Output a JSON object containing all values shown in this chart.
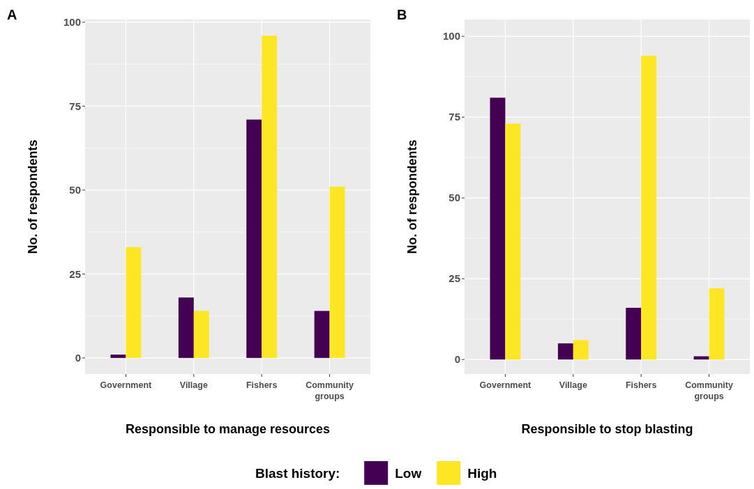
{
  "chart_data": [
    {
      "type": "bar",
      "title": "A",
      "xlabel": "Responsible to manage resources",
      "ylabel": "No. of respondents",
      "legend_title": "Blast history:",
      "legend": "bottom",
      "grid": true,
      "categories": [
        "Government",
        "Village",
        "Fishers",
        "Community groups"
      ],
      "series": [
        {
          "name": "Low",
          "color": "#440154",
          "values": [
            1,
            18,
            71,
            14
          ]
        },
        {
          "name": "High",
          "color": "#fde725",
          "values": [
            33,
            14,
            96,
            51
          ]
        }
      ],
      "ylim": [
        -4.8,
        100.8
      ],
      "yticks": [
        0,
        25,
        50,
        75,
        100
      ]
    },
    {
      "type": "bar",
      "title": "B",
      "xlabel": "Responsible to stop blasting",
      "ylabel": "No. of respondents",
      "grid": true,
      "categories": [
        "Government",
        "Village",
        "Fishers",
        "Community groups"
      ],
      "series": [
        {
          "color": "#440154",
          "values": [
            81,
            5,
            16,
            1
          ]
        },
        {
          "color": "#fde725",
          "values": [
            73,
            6,
            94,
            22
          ]
        }
      ],
      "ylim": [
        -4.5,
        105.2
      ],
      "yticks": [
        0,
        25,
        50,
        75,
        100
      ]
    }
  ]
}
